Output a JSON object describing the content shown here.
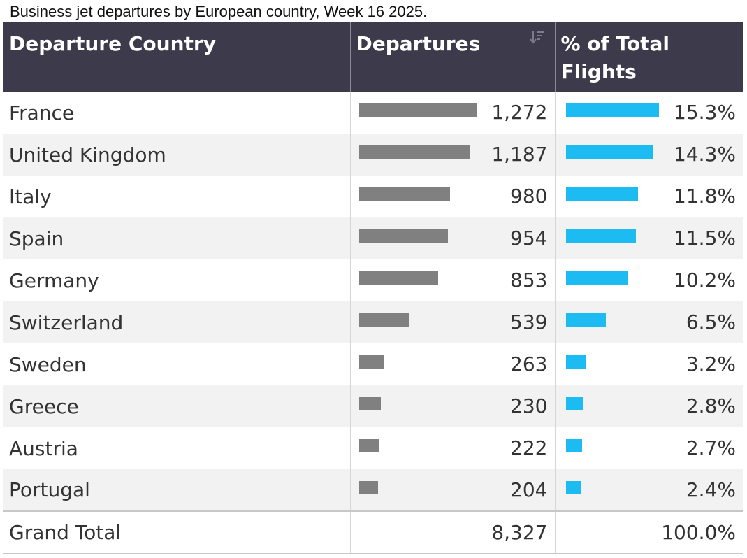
{
  "caption": "Business jet departures by European country, Week 16 2025.",
  "table": {
    "headers": [
      "Departure Country",
      "Departures",
      "% of Total Flights"
    ],
    "rows": [
      {
        "country": "France",
        "departures": "1,272",
        "pct": "15.3%"
      },
      {
        "country": "United Kingdom",
        "departures": "1,187",
        "pct": "14.3%"
      },
      {
        "country": "Italy",
        "departures": "980",
        "pct": "11.8%"
      },
      {
        "country": "Spain",
        "departures": "954",
        "pct": "11.5%"
      },
      {
        "country": "Germany",
        "departures": "853",
        "pct": "10.2%"
      },
      {
        "country": "Switzerland",
        "departures": "539",
        "pct": "6.5%"
      },
      {
        "country": "Sweden",
        "departures": "263",
        "pct": "3.2%"
      },
      {
        "country": "Greece",
        "departures": "230",
        "pct": "2.8%"
      },
      {
        "country": "Austria",
        "departures": "222",
        "pct": "2.7%"
      },
      {
        "country": "Portugal",
        "departures": "204",
        "pct": "2.4%"
      }
    ],
    "total": {
      "label": "Grand Total",
      "departures": "8,327",
      "pct": "100.0%"
    }
  },
  "chart_data": {
    "type": "table",
    "columns": [
      "Departure Country",
      "Departures",
      "% of Total Flights"
    ],
    "categories": [
      "France",
      "United Kingdom",
      "Italy",
      "Spain",
      "Germany",
      "Switzerland",
      "Sweden",
      "Greece",
      "Austria",
      "Portugal"
    ],
    "series": [
      {
        "name": "Departures",
        "values": [
          1272,
          1187,
          980,
          954,
          853,
          539,
          263,
          230,
          222,
          204
        ]
      },
      {
        "name": "% of Total Flights",
        "values": [
          15.3,
          14.3,
          11.8,
          11.5,
          10.2,
          6.5,
          3.2,
          2.8,
          2.7,
          2.4
        ]
      }
    ],
    "total": {
      "Departures": 8327,
      "% of Total Flights": 100.0
    }
  },
  "colors": {
    "header_bg": "#3d3a4b",
    "departures_bar": "#808080",
    "pct_bar": "#1cbcf3"
  },
  "icons": {
    "sort": "sort-descending-icon"
  }
}
